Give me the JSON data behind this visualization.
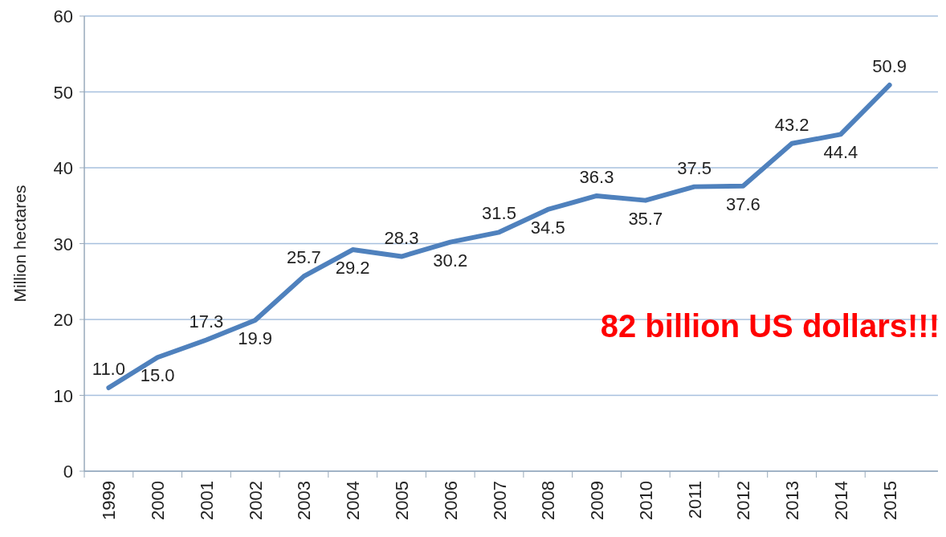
{
  "chart_data": {
    "type": "line",
    "ylabel": "Million hectares",
    "categories": [
      "1999",
      "2000",
      "2001",
      "2002",
      "2003",
      "2004",
      "2005",
      "2006",
      "2007",
      "2008",
      "2009",
      "2010",
      "2011",
      "2012",
      "2013",
      "2014",
      "2015"
    ],
    "series": [
      {
        "color": "#4f81bd",
        "values": [
          11.0,
          15.0,
          17.3,
          19.9,
          25.7,
          29.2,
          28.3,
          30.2,
          31.5,
          34.5,
          36.3,
          35.7,
          37.5,
          37.6,
          43.2,
          44.4,
          50.9
        ],
        "value_labels": [
          "11.0",
          "15.0",
          "17.3",
          "19.9",
          "25.7",
          "29.2",
          "28.3",
          "30.2",
          "31.5",
          "34.5",
          "36.3",
          "35.7",
          "37.5",
          "37.6",
          "43.2",
          "44.4",
          "50.9"
        ]
      }
    ],
    "ylim": [
      0,
      60
    ],
    "yticks": [
      0,
      10,
      20,
      30,
      40,
      50,
      60
    ],
    "grid": "y",
    "marker": "none",
    "annotations": [
      "82 billion US dollars!!!"
    ]
  }
}
